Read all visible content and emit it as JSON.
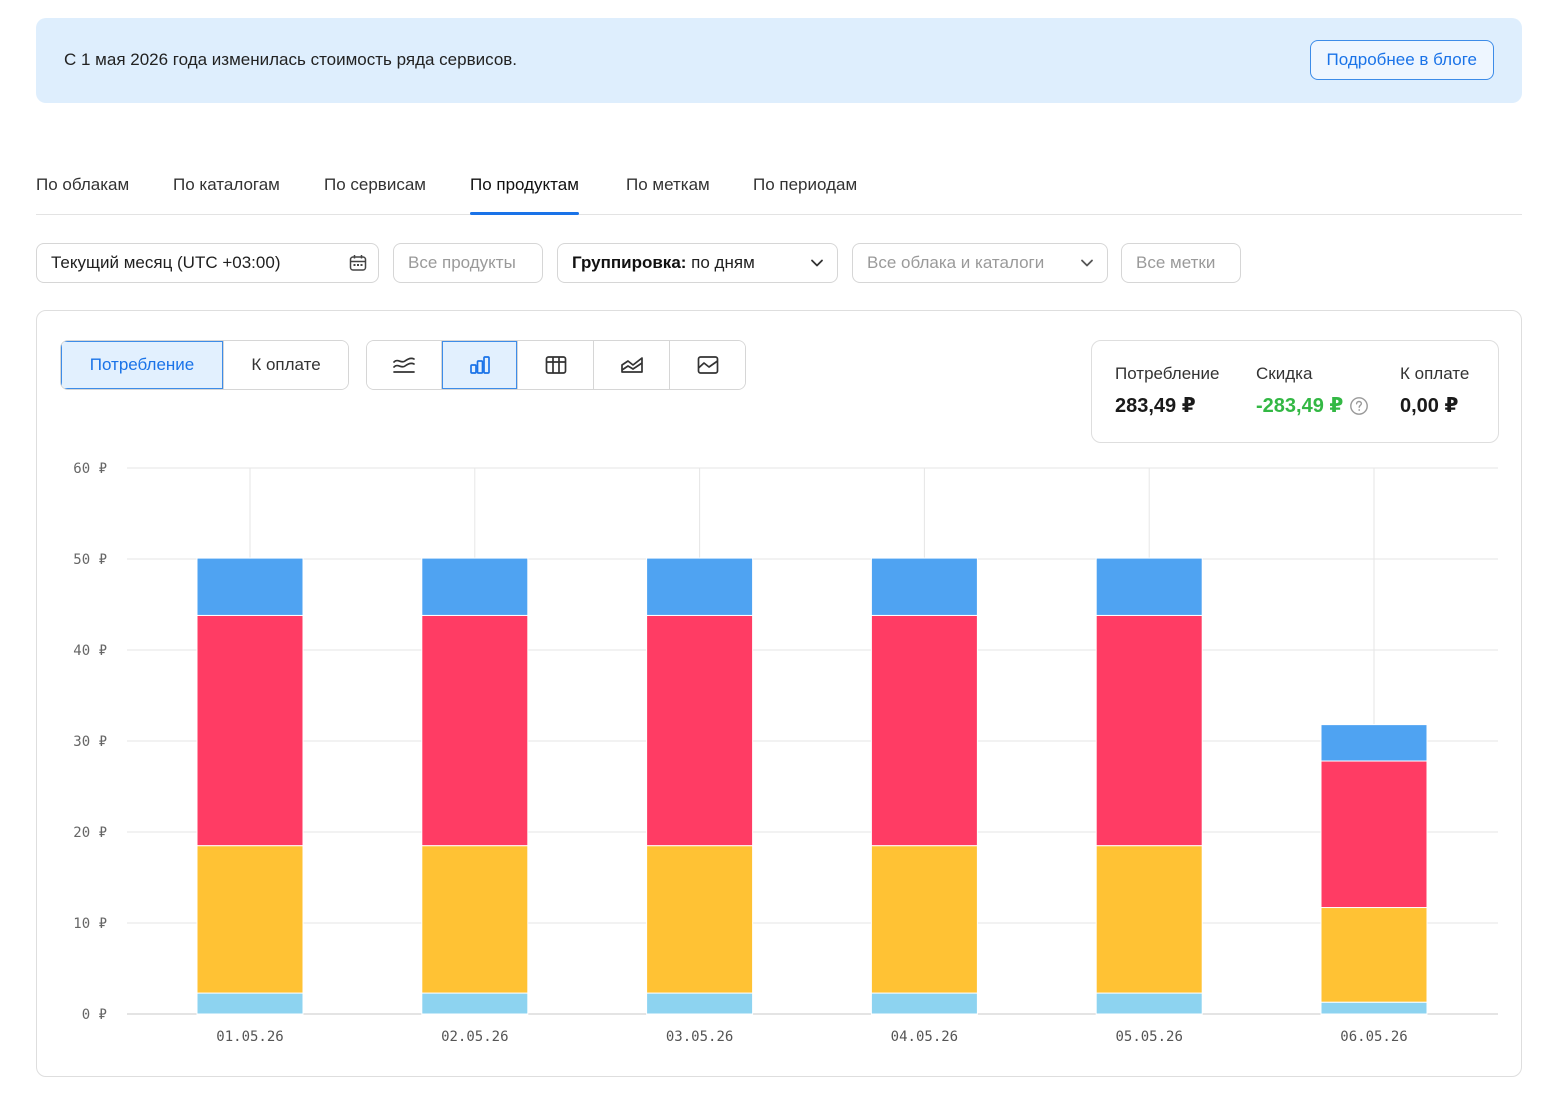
{
  "banner": {
    "text": "С 1 мая 2026 года изменилась стоимость ряда сервисов.",
    "button_label": "Подробнее в блоге"
  },
  "tabs": [
    {
      "label": "По облакам",
      "active": false
    },
    {
      "label": "По каталогам",
      "active": false
    },
    {
      "label": "По сервисам",
      "active": false
    },
    {
      "label": "По продуктам",
      "active": true
    },
    {
      "label": "По меткам",
      "active": false
    },
    {
      "label": "По периодам",
      "active": false
    }
  ],
  "filters": {
    "period": "Текущий месяц (UTC +03:00)",
    "products": "Все продукты",
    "grouping_label": "Группировка:",
    "grouping_value": "по дням",
    "clouds": "Все облака и каталоги",
    "labels": "Все метки"
  },
  "mode_toggle": {
    "consumption": "Потребление",
    "to_pay": "К оплате",
    "selected": "consumption"
  },
  "chart_type_buttons": {
    "items": [
      "lines-icon",
      "bar-chart-icon",
      "table-icon",
      "area-chart-icon",
      "line-chart-icon"
    ],
    "selected": "bar-chart-icon"
  },
  "summary": {
    "consumption_label": "Потребление",
    "consumption_value": "283,49 ₽",
    "discount_label": "Скидка",
    "discount_value": "-283,49 ₽",
    "to_pay_label": "К оплате",
    "to_pay_value": "0,00 ₽"
  },
  "colors": {
    "accent": "#1a73e8",
    "series": [
      "#8dd3f0",
      "#ffc234",
      "#ff3c64",
      "#4fa3f2"
    ],
    "discount": "#33b844"
  },
  "chart_data": {
    "type": "bar",
    "stacked": true,
    "categories": [
      "01.05.26",
      "02.05.26",
      "03.05.26",
      "04.05.26",
      "05.05.26",
      "06.05.26"
    ],
    "series": [
      {
        "values": [
          2.3,
          2.3,
          2.3,
          2.3,
          2.3,
          1.3
        ],
        "color": "#8dd3f0"
      },
      {
        "values": [
          16.2,
          16.2,
          16.2,
          16.2,
          16.2,
          10.4
        ],
        "color": "#ffc234"
      },
      {
        "values": [
          25.3,
          25.3,
          25.3,
          25.3,
          25.3,
          16.1
        ],
        "color": "#ff3c64"
      },
      {
        "values": [
          6.3,
          6.3,
          6.3,
          6.3,
          6.3,
          4.0
        ],
        "color": "#4fa3f2"
      }
    ],
    "ylim": [
      0,
      60
    ],
    "yticks": [
      "0 ₽",
      "10 ₽",
      "20 ₽",
      "30 ₽",
      "40 ₽",
      "50 ₽",
      "60 ₽"
    ],
    "grid": true
  }
}
